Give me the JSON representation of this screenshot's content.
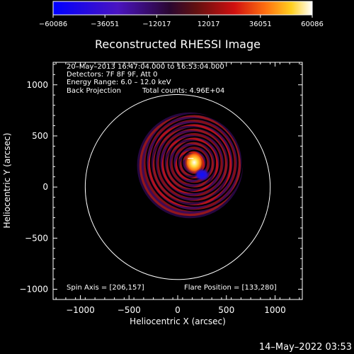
{
  "chart_data": {
    "type": "heatmap",
    "title": "Reconstructed RHESSI Image",
    "xlabel": "Heliocentric X (arcsec)",
    "ylabel": "Heliocentric Y (arcsec)",
    "xlim": [
      -1280,
      1280
    ],
    "ylim": [
      -1100,
      1220
    ],
    "x_ticks": [
      -1000,
      -500,
      0,
      500,
      1000
    ],
    "y_ticks": [
      -1000,
      -500,
      0,
      500,
      1000
    ],
    "colorbar": {
      "min": -60086,
      "max": 60086,
      "ticks": [
        -60086,
        -36051,
        -12017,
        12017,
        36051,
        60086
      ],
      "tick_labels": [
        "−60086",
        "−36051",
        "−12017",
        "12017",
        "36051",
        "60086"
      ]
    },
    "annotations": [
      "20–May–2013 16:47:04.000 to 16:53:04.000",
      "Detectors: 7F 8F 9F, Att 0",
      "Energy Range: 6.0 – 12.0 keV",
      "Back Projection",
      "Total counts: 4.96E+04"
    ],
    "spin_axis_label": "Spin Axis = [206,157]",
    "flare_position_label": "Flare Position = [133,280]",
    "spin_axis": [
      206,
      157
    ],
    "flare_position": [
      133,
      280
    ],
    "solar_limb_radius_arcsec": 950,
    "peak_positive": {
      "x": 170,
      "y": 240,
      "value": 60086
    },
    "peak_negative": {
      "x": 250,
      "y": 120,
      "value": -36051
    },
    "grid": false
  },
  "footer": {
    "timestamp": "14–May–2022 03:53"
  },
  "colors": {
    "background": "#000000",
    "limb_circle": "#ffffff",
    "negative": "#1a1aff",
    "mid_negative": "#5a1a9a",
    "zero": "#000000",
    "mid_positive": "#c01010",
    "positive": "#ffffff"
  }
}
